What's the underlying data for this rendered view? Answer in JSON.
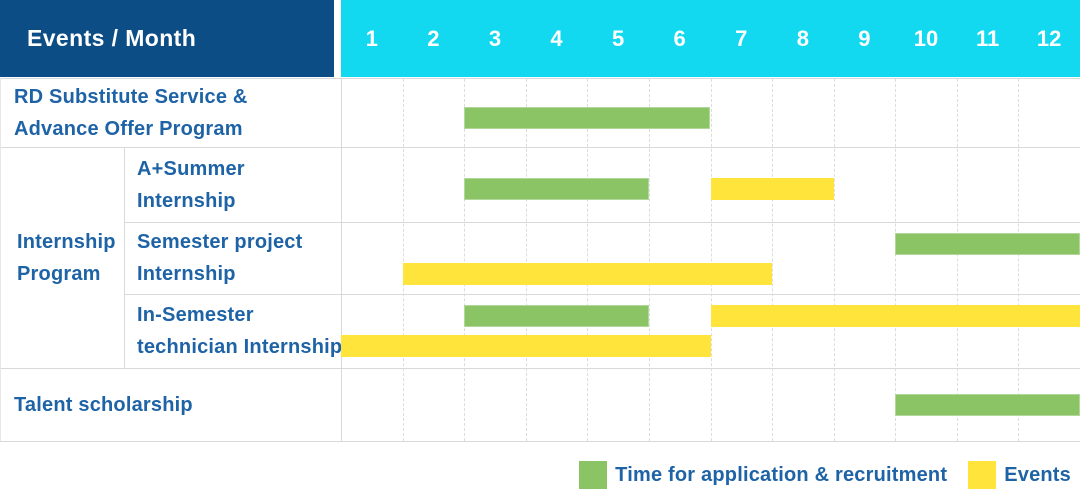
{
  "header": {
    "corner_label": "Events / Month"
  },
  "colors": {
    "header_bg": "#0d4d85",
    "months_bg": "#12d8f0",
    "label_text": "#1e63a6",
    "application": "#8ac464",
    "event": "#ffe43c"
  },
  "rows": {
    "rd": {
      "lines": [
        "RD Substitute Service &",
        "Advance Offer Program"
      ]
    },
    "group": {
      "lines": [
        "Internship",
        "Program"
      ]
    },
    "a_summer": {
      "lines": [
        "A+Summer",
        "Internship"
      ]
    },
    "semester": {
      "lines": [
        "Semester project",
        "Internship"
      ]
    },
    "in_semester": {
      "lines": [
        "In-Semester",
        "technician Internship"
      ]
    },
    "talent": {
      "lines": [
        "Talent scholarship"
      ]
    }
  },
  "legend": {
    "items": [
      {
        "type": "application",
        "label": "Time for application & recruitment"
      },
      {
        "type": "event",
        "label": "Events"
      }
    ]
  },
  "chart_data": {
    "type": "gantt",
    "title": "Events / Month",
    "month_labels": [
      "1",
      "2",
      "3",
      "4",
      "5",
      "6",
      "7",
      "8",
      "9",
      "10",
      "11",
      "12"
    ],
    "x_range": [
      1,
      12
    ],
    "legend": {
      "application": "Time for application & recruitment",
      "event": "Events"
    },
    "rows": [
      {
        "name": "RD Substitute Service & Advance Offer Program",
        "bars": [
          {
            "type": "application",
            "start_month": 3,
            "end_month": 6,
            "lane": "c"
          }
        ]
      },
      {
        "name": "A+Summer Internship",
        "group": "Internship Program",
        "bars": [
          {
            "type": "application",
            "start_month": 3,
            "end_month": 5,
            "lane": "c"
          },
          {
            "type": "event",
            "start_month": 7,
            "end_month": 8,
            "lane": "c"
          }
        ]
      },
      {
        "name": "Semester project Internship",
        "group": "Internship Program",
        "bars": [
          {
            "type": "application",
            "start_month": 10,
            "end_month": 12,
            "lane": "a"
          },
          {
            "type": "event",
            "start_month": 2,
            "end_month": 7,
            "lane": "b"
          }
        ]
      },
      {
        "name": "In-Semester technician Internship",
        "group": "Internship Program",
        "bars": [
          {
            "type": "application",
            "start_month": 3,
            "end_month": 5,
            "lane": "a"
          },
          {
            "type": "event",
            "start_month": 7,
            "end_month": 12,
            "lane": "a"
          },
          {
            "type": "event",
            "start_month": 1,
            "end_month": 6,
            "lane": "b"
          }
        ]
      },
      {
        "name": "Talent scholarship",
        "bars": [
          {
            "type": "application",
            "start_month": 10,
            "end_month": 12,
            "lane": "c"
          }
        ]
      }
    ]
  }
}
